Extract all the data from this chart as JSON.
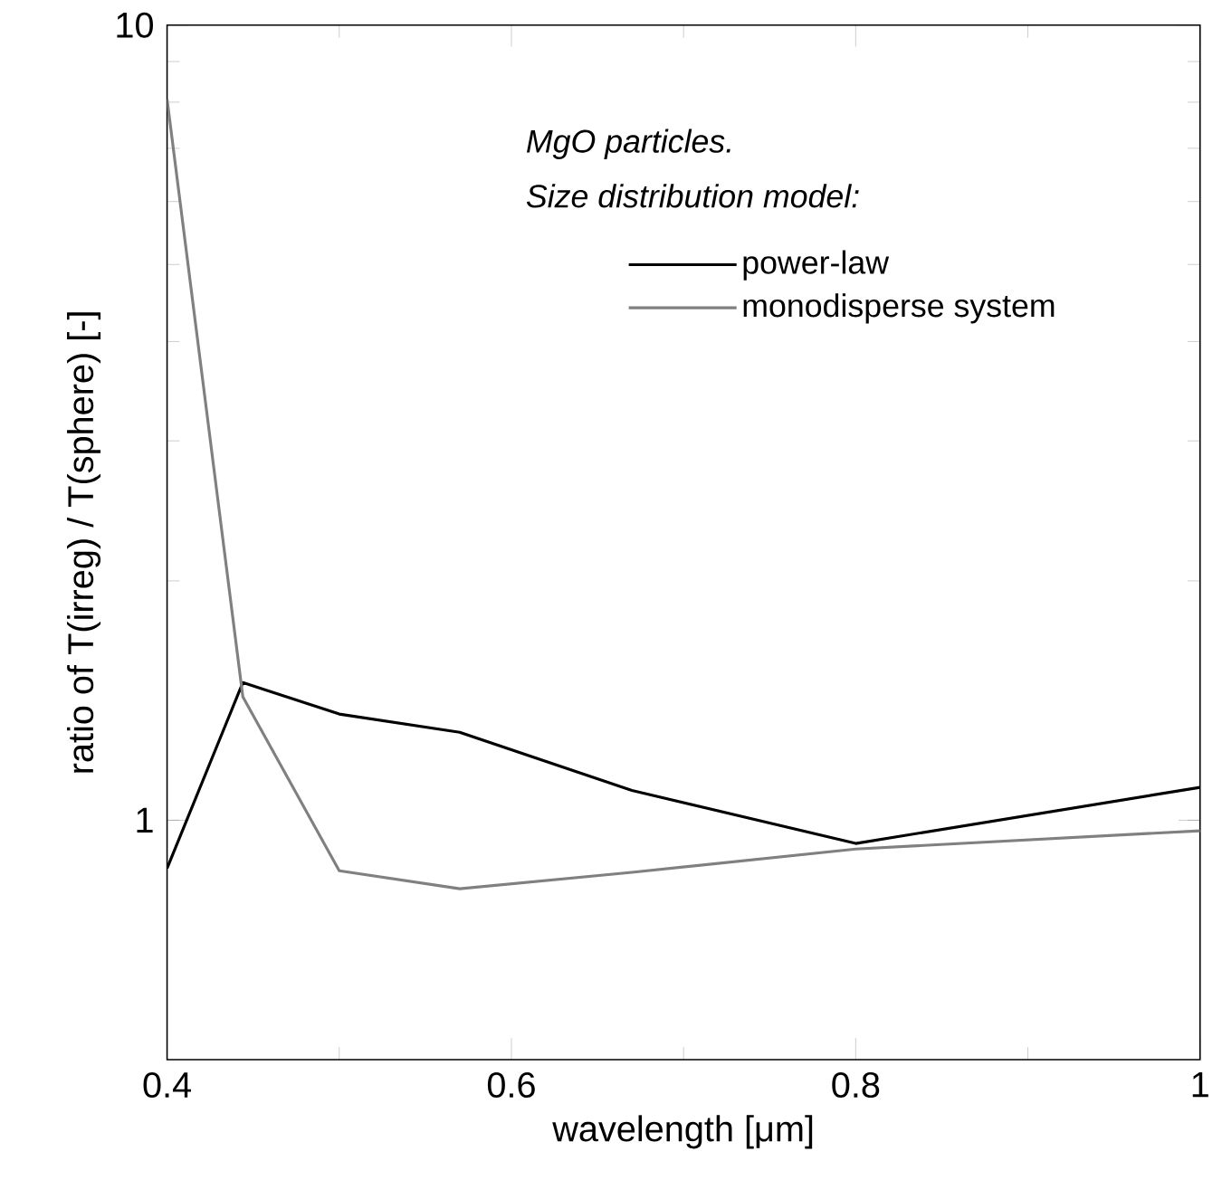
{
  "chart_data": {
    "type": "line",
    "xlabel": "wavelength [μm]",
    "ylabel": "ratio of T(irreg) / T(sphere) [-]",
    "annotations": [
      "*MgO particles.*",
      "*Size distribution model:*"
    ],
    "x": [
      0.4,
      0.444,
      0.5,
      0.57,
      0.67,
      0.8,
      1.0
    ],
    "series": [
      {
        "name": "power-law",
        "color": "#000000",
        "values": [
          0.87,
          1.49,
          1.36,
          1.29,
          1.09,
          0.935,
          1.1
        ]
      },
      {
        "name": "monodisperse system",
        "color": "#808080",
        "values": [
          8.07,
          1.43,
          0.864,
          0.82,
          0.86,
          0.92,
          0.97
        ]
      }
    ],
    "xlim": [
      0.4,
      1.0
    ],
    "ylim": [
      0.5,
      10
    ],
    "xticks": [
      0.4,
      0.6,
      0.8,
      1
    ],
    "yticks": [
      1,
      10
    ],
    "log": "y",
    "grid": false,
    "legend": "top right",
    "marker": "none",
    "line_style": "solid"
  }
}
